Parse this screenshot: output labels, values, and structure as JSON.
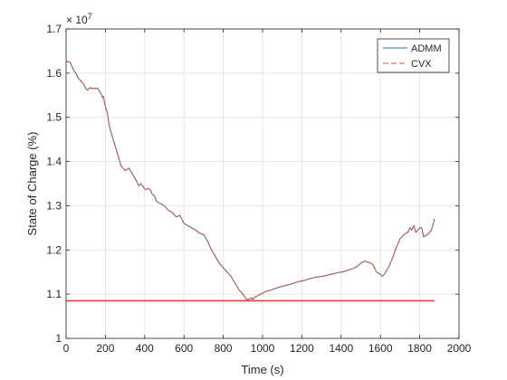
{
  "chart_data": {
    "type": "line",
    "xlabel": "Time (s)",
    "ylabel": "State of Charge (%)",
    "exponent_label": "× 10",
    "exponent_power": "7",
    "xlim": [
      0,
      2000
    ],
    "ylim": [
      1.0,
      1.7
    ],
    "x_ticks": [
      0,
      200,
      400,
      600,
      800,
      1000,
      1200,
      1400,
      1600,
      1800,
      2000
    ],
    "y_ticks": [
      1.0,
      1.1,
      1.2,
      1.3,
      1.4,
      1.5,
      1.6,
      1.7
    ],
    "x_tick_labels": [
      "0",
      "200",
      "400",
      "600",
      "800",
      "1000",
      "1200",
      "1400",
      "1600",
      "1800",
      "2000"
    ],
    "y_tick_labels": [
      "1",
      "1.1",
      "1.2",
      "1.3",
      "1.4",
      "1.5",
      "1.6",
      "1.7"
    ],
    "grid": true,
    "legend_position": "top-right",
    "series": [
      {
        "name": "ADMM",
        "color": "#2a6fa8",
        "style": "solid",
        "x": [
          0,
          20,
          30,
          40,
          50,
          60,
          70,
          80,
          90,
          100,
          110,
          120,
          140,
          160,
          180,
          185,
          190,
          195,
          200,
          210,
          220,
          240,
          260,
          280,
          300,
          320,
          340,
          360,
          370,
          380,
          390,
          400,
          410,
          420,
          430,
          440,
          450,
          460,
          480,
          500,
          520,
          540,
          560,
          580,
          600,
          620,
          640,
          660,
          680,
          700,
          720,
          740,
          760,
          780,
          800,
          820,
          840,
          860,
          880,
          900,
          920,
          940,
          945,
          950,
          960,
          970,
          980,
          990,
          1000,
          1020,
          1040,
          1060,
          1080,
          1100,
          1120,
          1140,
          1160,
          1180,
          1200,
          1220,
          1240,
          1260,
          1280,
          1300,
          1320,
          1340,
          1360,
          1380,
          1400,
          1420,
          1440,
          1460,
          1480,
          1500,
          1520,
          1540,
          1560,
          1580,
          1600,
          1610,
          1620,
          1640,
          1660,
          1680,
          1700,
          1710,
          1720,
          1740,
          1750,
          1760,
          1770,
          1780,
          1790,
          1800,
          1810,
          1820,
          1840,
          1860,
          1875
        ],
        "y": [
          1.627,
          1.625,
          1.615,
          1.605,
          1.6,
          1.59,
          1.585,
          1.58,
          1.575,
          1.565,
          1.562,
          1.567,
          1.565,
          1.566,
          1.552,
          1.545,
          1.548,
          1.535,
          1.525,
          1.51,
          1.48,
          1.45,
          1.42,
          1.39,
          1.38,
          1.385,
          1.37,
          1.355,
          1.345,
          1.35,
          1.345,
          1.338,
          1.337,
          1.34,
          1.335,
          1.325,
          1.323,
          1.31,
          1.305,
          1.3,
          1.29,
          1.285,
          1.275,
          1.278,
          1.26,
          1.255,
          1.25,
          1.245,
          1.238,
          1.235,
          1.22,
          1.2,
          1.185,
          1.17,
          1.16,
          1.15,
          1.14,
          1.125,
          1.11,
          1.1,
          1.087,
          1.09,
          1.092,
          1.088,
          1.093,
          1.095,
          1.098,
          1.1,
          1.102,
          1.107,
          1.109,
          1.112,
          1.115,
          1.118,
          1.12,
          1.122,
          1.125,
          1.128,
          1.13,
          1.132,
          1.135,
          1.137,
          1.139,
          1.14,
          1.142,
          1.144,
          1.146,
          1.148,
          1.15,
          1.152,
          1.155,
          1.158,
          1.162,
          1.17,
          1.175,
          1.172,
          1.168,
          1.15,
          1.145,
          1.14,
          1.145,
          1.16,
          1.18,
          1.205,
          1.225,
          1.23,
          1.235,
          1.24,
          1.25,
          1.245,
          1.255,
          1.24,
          1.245,
          1.25,
          1.25,
          1.23,
          1.235,
          1.245,
          1.27
        ]
      },
      {
        "name": "CVX",
        "color": "#d9553a",
        "style": "dashed",
        "x": [
          0,
          20,
          30,
          40,
          50,
          60,
          70,
          80,
          90,
          100,
          110,
          120,
          140,
          160,
          180,
          185,
          190,
          195,
          200,
          210,
          220,
          240,
          260,
          280,
          300,
          320,
          340,
          360,
          370,
          380,
          390,
          400,
          410,
          420,
          430,
          440,
          450,
          460,
          480,
          500,
          520,
          540,
          560,
          580,
          600,
          620,
          640,
          660,
          680,
          700,
          720,
          740,
          760,
          780,
          800,
          820,
          840,
          860,
          880,
          900,
          920,
          940,
          945,
          950,
          960,
          970,
          980,
          990,
          1000,
          1020,
          1040,
          1060,
          1080,
          1100,
          1120,
          1140,
          1160,
          1180,
          1200,
          1220,
          1240,
          1260,
          1280,
          1300,
          1320,
          1340,
          1360,
          1380,
          1400,
          1420,
          1440,
          1460,
          1480,
          1500,
          1520,
          1540,
          1560,
          1580,
          1600,
          1610,
          1620,
          1640,
          1660,
          1680,
          1700,
          1710,
          1720,
          1740,
          1750,
          1760,
          1770,
          1780,
          1790,
          1800,
          1810,
          1820,
          1840,
          1860,
          1875
        ],
        "y": [
          1.627,
          1.625,
          1.615,
          1.605,
          1.6,
          1.59,
          1.585,
          1.58,
          1.575,
          1.565,
          1.562,
          1.567,
          1.565,
          1.566,
          1.552,
          1.545,
          1.548,
          1.535,
          1.525,
          1.51,
          1.48,
          1.45,
          1.42,
          1.39,
          1.38,
          1.385,
          1.37,
          1.355,
          1.345,
          1.35,
          1.345,
          1.338,
          1.337,
          1.34,
          1.335,
          1.325,
          1.323,
          1.31,
          1.305,
          1.3,
          1.29,
          1.285,
          1.275,
          1.278,
          1.26,
          1.255,
          1.25,
          1.245,
          1.238,
          1.235,
          1.22,
          1.2,
          1.185,
          1.17,
          1.16,
          1.15,
          1.14,
          1.125,
          1.11,
          1.1,
          1.087,
          1.09,
          1.092,
          1.088,
          1.093,
          1.095,
          1.098,
          1.1,
          1.102,
          1.107,
          1.109,
          1.112,
          1.115,
          1.118,
          1.12,
          1.122,
          1.125,
          1.128,
          1.13,
          1.132,
          1.135,
          1.137,
          1.139,
          1.14,
          1.142,
          1.144,
          1.146,
          1.148,
          1.15,
          1.152,
          1.155,
          1.158,
          1.162,
          1.17,
          1.175,
          1.172,
          1.168,
          1.15,
          1.145,
          1.14,
          1.145,
          1.16,
          1.18,
          1.205,
          1.225,
          1.23,
          1.235,
          1.24,
          1.25,
          1.245,
          1.255,
          1.24,
          1.245,
          1.25,
          1.25,
          1.23,
          1.235,
          1.245,
          1.27
        ]
      }
    ],
    "reference_line": {
      "color": "#e8403a",
      "y": 1.085,
      "x_start": 0,
      "x_end": 1875
    }
  }
}
